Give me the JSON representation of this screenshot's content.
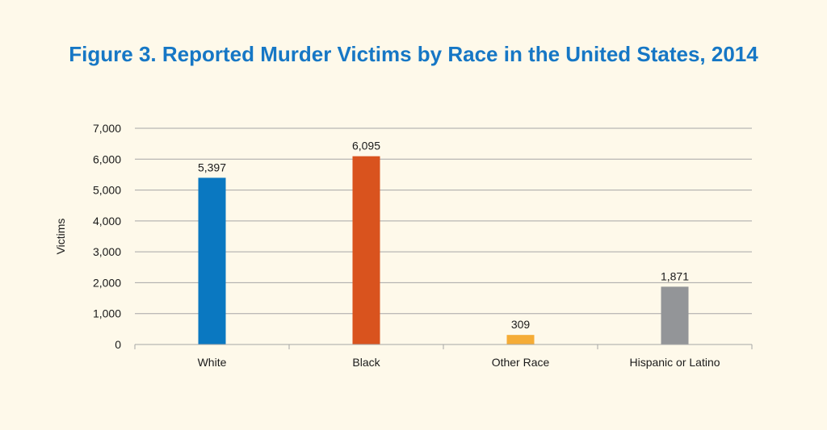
{
  "chart_data": {
    "type": "bar",
    "title": "Figure 3. Reported Murder Victims by Race in the United States, 2014",
    "ylabel": "Victims",
    "xlabel": "",
    "categories": [
      "White",
      "Black",
      "Other Race",
      "Hispanic or Latino"
    ],
    "values": [
      5397,
      6095,
      309,
      1871
    ],
    "value_labels": [
      "5,397",
      "6,095",
      "309",
      "1,871"
    ],
    "colors": [
      "#0a78c1",
      "#d9531e",
      "#f5ac36",
      "#939598"
    ],
    "ylim": [
      0,
      7000
    ],
    "yticks": [
      0,
      1000,
      2000,
      3000,
      4000,
      5000,
      6000,
      7000
    ],
    "ytick_labels": [
      "0",
      "1,000",
      "2,000",
      "3,000",
      "4,000",
      "5,000",
      "6,000",
      "7,000"
    ],
    "grid": true,
    "legend": "none"
  },
  "colors": {
    "background": "#fef9ea",
    "title": "#1677c5",
    "grid": "#a6a6a6"
  }
}
